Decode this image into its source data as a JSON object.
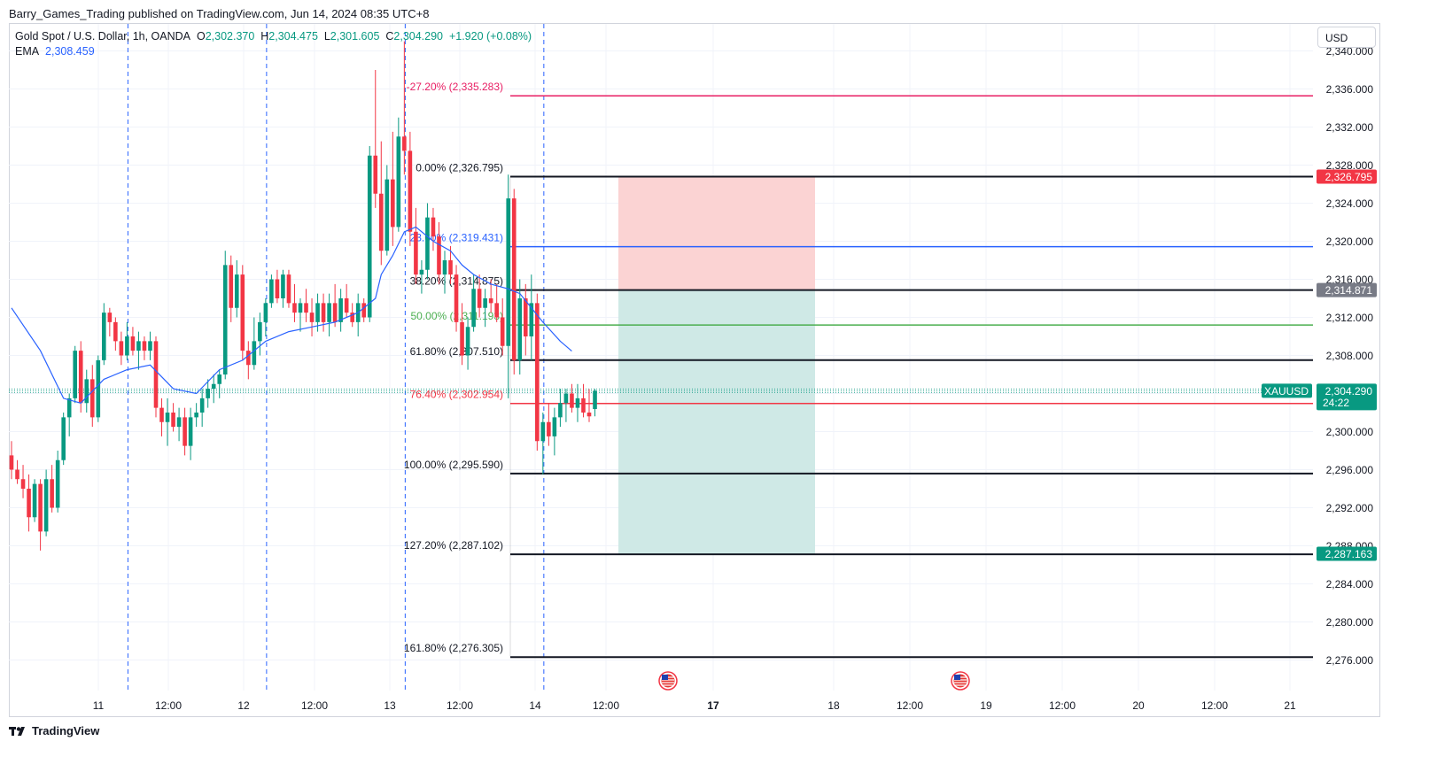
{
  "header": {
    "published": "Barry_Games_Trading published on TradingView.com, Jun 14, 2024 08:35 UTC+8"
  },
  "legend": {
    "symbol": "Gold Spot / U.S. Dollar, 1h, OANDA",
    "o_label": "O",
    "o_value": "2,302.370",
    "h_label": "H",
    "h_value": "2,304.475",
    "l_label": "L",
    "l_value": "2,301.605",
    "c_label": "C",
    "c_value": "2,304.290",
    "change": "+1.920 (+0.08%)",
    "ema_label": "EMA",
    "ema_value": "2,308.459"
  },
  "currency_button": "USD",
  "footer": {
    "brand": "TradingView",
    "logo_icon": "tradingview-logo-icon"
  },
  "colors": {
    "up": "#089981",
    "down": "#f23645",
    "ema": "#2962ff",
    "fib_default": "#131722",
    "fib_236": "#2962ff",
    "fib_50": "#4caf50",
    "fib_764": "#f23645",
    "fib_neg272": "#e91e63",
    "stop_zone": "#fbd3d3",
    "target_zone": "#cfe9e6",
    "grid": "#f0f3fa"
  },
  "chart_data": {
    "type": "candlestick",
    "symbol": "XAUUSD",
    "interval": "1h",
    "y_range": [
      2270.0,
      2340.0
    ],
    "y_ticks": [
      "2,276.000",
      "2,280.000",
      "2,284.000",
      "2,288.000",
      "2,292.000",
      "2,296.000",
      "2,300.000",
      "2,304.000",
      "2,308.000",
      "2,312.000",
      "2,316.000",
      "2,320.000",
      "2,324.000",
      "2,328.000",
      "2,332.000",
      "2,336.000",
      "2,340.000"
    ],
    "x_ticks": [
      "11",
      "12:00",
      "12",
      "12:00",
      "13",
      "12:00",
      "14",
      "12:00",
      "17",
      "18",
      "12:00",
      "19",
      "12:00",
      "20",
      "12:00",
      "21"
    ],
    "x_ticks_bold": [
      false,
      false,
      false,
      false,
      false,
      false,
      false,
      false,
      true,
      false,
      false,
      false,
      false,
      false,
      false,
      false
    ],
    "candles": [
      [
        2297.5,
        2299.0,
        2295.0,
        2296.0
      ],
      [
        2296.0,
        2297.0,
        2294.5,
        2295.0
      ],
      [
        2295.0,
        2296.5,
        2293.0,
        2294.0
      ],
      [
        2294.0,
        2295.5,
        2289.5,
        2291.0
      ],
      [
        2291.0,
        2295.0,
        2290.5,
        2294.5
      ],
      [
        2294.5,
        2295.0,
        2287.5,
        2289.5
      ],
      [
        2289.5,
        2296.0,
        2289.0,
        2295.0
      ],
      [
        2295.0,
        2296.5,
        2291.5,
        2292.0
      ],
      [
        2292.0,
        2298.0,
        2291.5,
        2297.0
      ],
      [
        2297.0,
        2302.0,
        2296.5,
        2301.5
      ],
      [
        2301.5,
        2304.0,
        2299.5,
        2303.5
      ],
      [
        2303.5,
        2309.0,
        2303.0,
        2308.5
      ],
      [
        2308.5,
        2309.5,
        2302.0,
        2303.0
      ],
      [
        2303.0,
        2306.5,
        2302.0,
        2305.5
      ],
      [
        2305.5,
        2307.0,
        2300.5,
        2301.5
      ],
      [
        2301.5,
        2308.0,
        2301.0,
        2307.5
      ],
      [
        2307.5,
        2313.5,
        2307.0,
        2312.5
      ],
      [
        2312.5,
        2313.0,
        2310.0,
        2311.5
      ],
      [
        2311.5,
        2312.0,
        2308.5,
        2309.5
      ],
      [
        2309.5,
        2310.5,
        2307.0,
        2308.0
      ],
      [
        2308.0,
        2311.5,
        2307.5,
        2310.0
      ],
      [
        2310.0,
        2311.0,
        2308.0,
        2308.5
      ],
      [
        2308.5,
        2310.5,
        2306.5,
        2309.5
      ],
      [
        2309.5,
        2310.0,
        2307.5,
        2308.5
      ],
      [
        2308.5,
        2310.5,
        2307.5,
        2309.5
      ],
      [
        2309.5,
        2310.0,
        2301.5,
        2302.5
      ],
      [
        2302.5,
        2303.5,
        2299.5,
        2301.0
      ],
      [
        2301.0,
        2303.5,
        2298.5,
        2302.0
      ],
      [
        2302.0,
        2303.0,
        2300.0,
        2300.5
      ],
      [
        2300.5,
        2302.5,
        2299.0,
        2301.5
      ],
      [
        2301.5,
        2302.5,
        2297.5,
        2298.5
      ],
      [
        2298.5,
        2302.5,
        2297.0,
        2301.5
      ],
      [
        2301.5,
        2303.0,
        2300.5,
        2302.0
      ],
      [
        2302.0,
        2304.5,
        2300.5,
        2303.5
      ],
      [
        2303.5,
        2305.5,
        2302.5,
        2304.5
      ],
      [
        2304.5,
        2306.0,
        2303.0,
        2305.0
      ],
      [
        2305.0,
        2306.5,
        2303.5,
        2306.0
      ],
      [
        2306.0,
        2319.0,
        2305.5,
        2317.5
      ],
      [
        2317.5,
        2318.5,
        2311.5,
        2313.0
      ],
      [
        2313.0,
        2318.0,
        2312.0,
        2316.5
      ],
      [
        2316.5,
        2317.5,
        2307.5,
        2308.5
      ],
      [
        2308.5,
        2309.5,
        2305.5,
        2307.0
      ],
      [
        2307.0,
        2312.0,
        2306.5,
        2309.5
      ],
      [
        2309.5,
        2312.5,
        2308.0,
        2311.5
      ],
      [
        2311.5,
        2314.0,
        2310.0,
        2313.5
      ],
      [
        2313.5,
        2316.5,
        2313.0,
        2316.0
      ],
      [
        2316.0,
        2317.0,
        2313.5,
        2314.0
      ],
      [
        2314.0,
        2317.0,
        2313.0,
        2316.5
      ],
      [
        2316.5,
        2317.0,
        2313.0,
        2313.5
      ],
      [
        2313.5,
        2315.5,
        2311.5,
        2312.5
      ],
      [
        2312.5,
        2314.0,
        2310.5,
        2313.5
      ],
      [
        2313.5,
        2315.0,
        2311.5,
        2312.5
      ],
      [
        2312.5,
        2314.0,
        2310.0,
        2311.5
      ],
      [
        2311.5,
        2314.5,
        2310.5,
        2313.5
      ],
      [
        2313.5,
        2314.5,
        2310.5,
        2311.5
      ],
      [
        2311.5,
        2314.5,
        2310.0,
        2313.5
      ],
      [
        2313.5,
        2315.5,
        2311.0,
        2311.5
      ],
      [
        2311.5,
        2315.0,
        2310.5,
        2314.0
      ],
      [
        2314.0,
        2315.5,
        2312.0,
        2312.5
      ],
      [
        2312.5,
        2313.5,
        2311.0,
        2311.5
      ],
      [
        2311.5,
        2314.5,
        2310.0,
        2313.5
      ],
      [
        2313.5,
        2314.0,
        2311.5,
        2312.0
      ],
      [
        2312.0,
        2330.0,
        2311.5,
        2329.0
      ],
      [
        2329.0,
        2338.0,
        2323.5,
        2325.0
      ],
      [
        2325.0,
        2330.5,
        2317.5,
        2319.0
      ],
      [
        2319.0,
        2328.0,
        2318.5,
        2326.5
      ],
      [
        2326.5,
        2331.5,
        2319.5,
        2321.5
      ],
      [
        2321.5,
        2333.0,
        2321.0,
        2331.0
      ],
      [
        2331.0,
        2341.0,
        2327.0,
        2329.5
      ],
      [
        2329.5,
        2331.5,
        2319.5,
        2321.0
      ],
      [
        2321.0,
        2323.5,
        2315.5,
        2316.5
      ],
      [
        2316.5,
        2318.0,
        2314.5,
        2317.0
      ],
      [
        2317.0,
        2324.0,
        2316.0,
        2322.5
      ],
      [
        2322.5,
        2323.5,
        2319.0,
        2320.5
      ],
      [
        2320.5,
        2322.0,
        2315.5,
        2316.5
      ],
      [
        2316.5,
        2319.0,
        2314.5,
        2318.0
      ],
      [
        2318.0,
        2319.5,
        2315.5,
        2316.5
      ],
      [
        2316.5,
        2317.5,
        2310.5,
        2311.5
      ],
      [
        2311.5,
        2313.5,
        2307.0,
        2308.0
      ],
      [
        2308.0,
        2312.0,
        2306.5,
        2311.0
      ],
      [
        2311.0,
        2316.5,
        2310.5,
        2315.0
      ],
      [
        2315.0,
        2316.5,
        2312.0,
        2313.0
      ],
      [
        2313.0,
        2315.0,
        2311.0,
        2314.0
      ],
      [
        2314.0,
        2316.0,
        2312.5,
        2313.5
      ],
      [
        2313.5,
        2315.5,
        2311.5,
        2312.0
      ],
      [
        2312.0,
        2314.0,
        2308.0,
        2309.0
      ],
      [
        2309.0,
        2327.0,
        2303.5,
        2324.5
      ],
      [
        2324.5,
        2325.5,
        2306.0,
        2307.5
      ],
      [
        2307.5,
        2316.0,
        2306.0,
        2314.0
      ],
      [
        2314.0,
        2315.5,
        2308.0,
        2310.0
      ],
      [
        2310.0,
        2316.5,
        2307.5,
        2313.5
      ],
      [
        2313.5,
        2314.5,
        2298.0,
        2299.0
      ],
      [
        2299.0,
        2302.0,
        2295.5,
        2301.0
      ],
      [
        2301.0,
        2303.0,
        2298.5,
        2299.5
      ],
      [
        2299.5,
        2302.5,
        2297.5,
        2301.5
      ],
      [
        2301.5,
        2304.5,
        2300.5,
        2303.0
      ],
      [
        2303.0,
        2304.5,
        2301.0,
        2304.0
      ],
      [
        2304.0,
        2305.0,
        2302.0,
        2302.5
      ],
      [
        2302.5,
        2305.0,
        2301.0,
        2303.5
      ],
      [
        2303.5,
        2305.0,
        2301.5,
        2302.0
      ],
      [
        2302.0,
        2304.475,
        2301.0,
        2301.6
      ],
      [
        2302.37,
        2304.475,
        2301.605,
        2304.29
      ]
    ],
    "ema": [
      [
        0,
        2313.0
      ],
      [
        5,
        2308.5
      ],
      [
        9,
        2303.5
      ],
      [
        12,
        2303.0
      ],
      [
        16,
        2305.5
      ],
      [
        20,
        2306.5
      ],
      [
        24,
        2307.0
      ],
      [
        28,
        2304.5
      ],
      [
        32,
        2304.0
      ],
      [
        36,
        2306.5
      ],
      [
        40,
        2307.5
      ],
      [
        44,
        2309.5
      ],
      [
        48,
        2310.5
      ],
      [
        52,
        2311.0
      ],
      [
        56,
        2311.5
      ],
      [
        60,
        2312.5
      ],
      [
        63,
        2314.0
      ],
      [
        64,
        2316.5
      ],
      [
        66,
        2318.5
      ],
      [
        68,
        2321.0
      ],
      [
        70,
        2321.5
      ],
      [
        73,
        2320.0
      ],
      [
        76,
        2319.0
      ],
      [
        78,
        2317.5
      ],
      [
        80,
        2316.5
      ],
      [
        83,
        2315.5
      ],
      [
        86,
        2315.0
      ],
      [
        88,
        2314.5
      ],
      [
        90,
        2313.0
      ],
      [
        92,
        2311.5
      ],
      [
        95,
        2309.5
      ],
      [
        97,
        2308.459
      ]
    ],
    "day_separator_hours": [
      20,
      44,
      68,
      92
    ],
    "fibonacci": [
      {
        "label": "-27.20% (2,335.283)",
        "price": 2335.283,
        "role": "neg272"
      },
      {
        "label": "0.00% (2,326.795)",
        "price": 2326.795,
        "role": "default"
      },
      {
        "label": "23.60% (2,319.431)",
        "price": 2319.431,
        "role": "236"
      },
      {
        "label": "38.20% (2,314.875)",
        "price": 2314.875,
        "role": "default"
      },
      {
        "label": "50.00% (2,311.193)",
        "price": 2311.193,
        "role": "50"
      },
      {
        "label": "61.80% (2,307.510)",
        "price": 2307.51,
        "role": "default"
      },
      {
        "label": "76.40% (2,302.954)",
        "price": 2302.954,
        "role": "764"
      },
      {
        "label": "100.00% (2,295.590)",
        "price": 2295.59,
        "role": "default"
      },
      {
        "label": "127.20% (2,287.102)",
        "price": 2287.102,
        "role": "default"
      },
      {
        "label": "161.80% (2,276.305)",
        "price": 2276.305,
        "role": "default"
      }
    ],
    "position": {
      "entry": 2314.871,
      "stop": 2326.795,
      "target": 2287.163
    },
    "price_tags": [
      {
        "text": "2,326.795",
        "price": 2326.795,
        "color": "#f23645"
      },
      {
        "text": "2,314.871",
        "price": 2314.871,
        "color": "#787b86"
      },
      {
        "text": "2,287.163",
        "price": 2287.163,
        "color": "#089981"
      }
    ],
    "current_price": {
      "symbol": "XAUUSD",
      "price_text": "2,304.290",
      "price": 2304.29,
      "countdown": "24:22"
    },
    "event_icons": [
      "us-flag-icon",
      "us-flag-icon"
    ]
  }
}
